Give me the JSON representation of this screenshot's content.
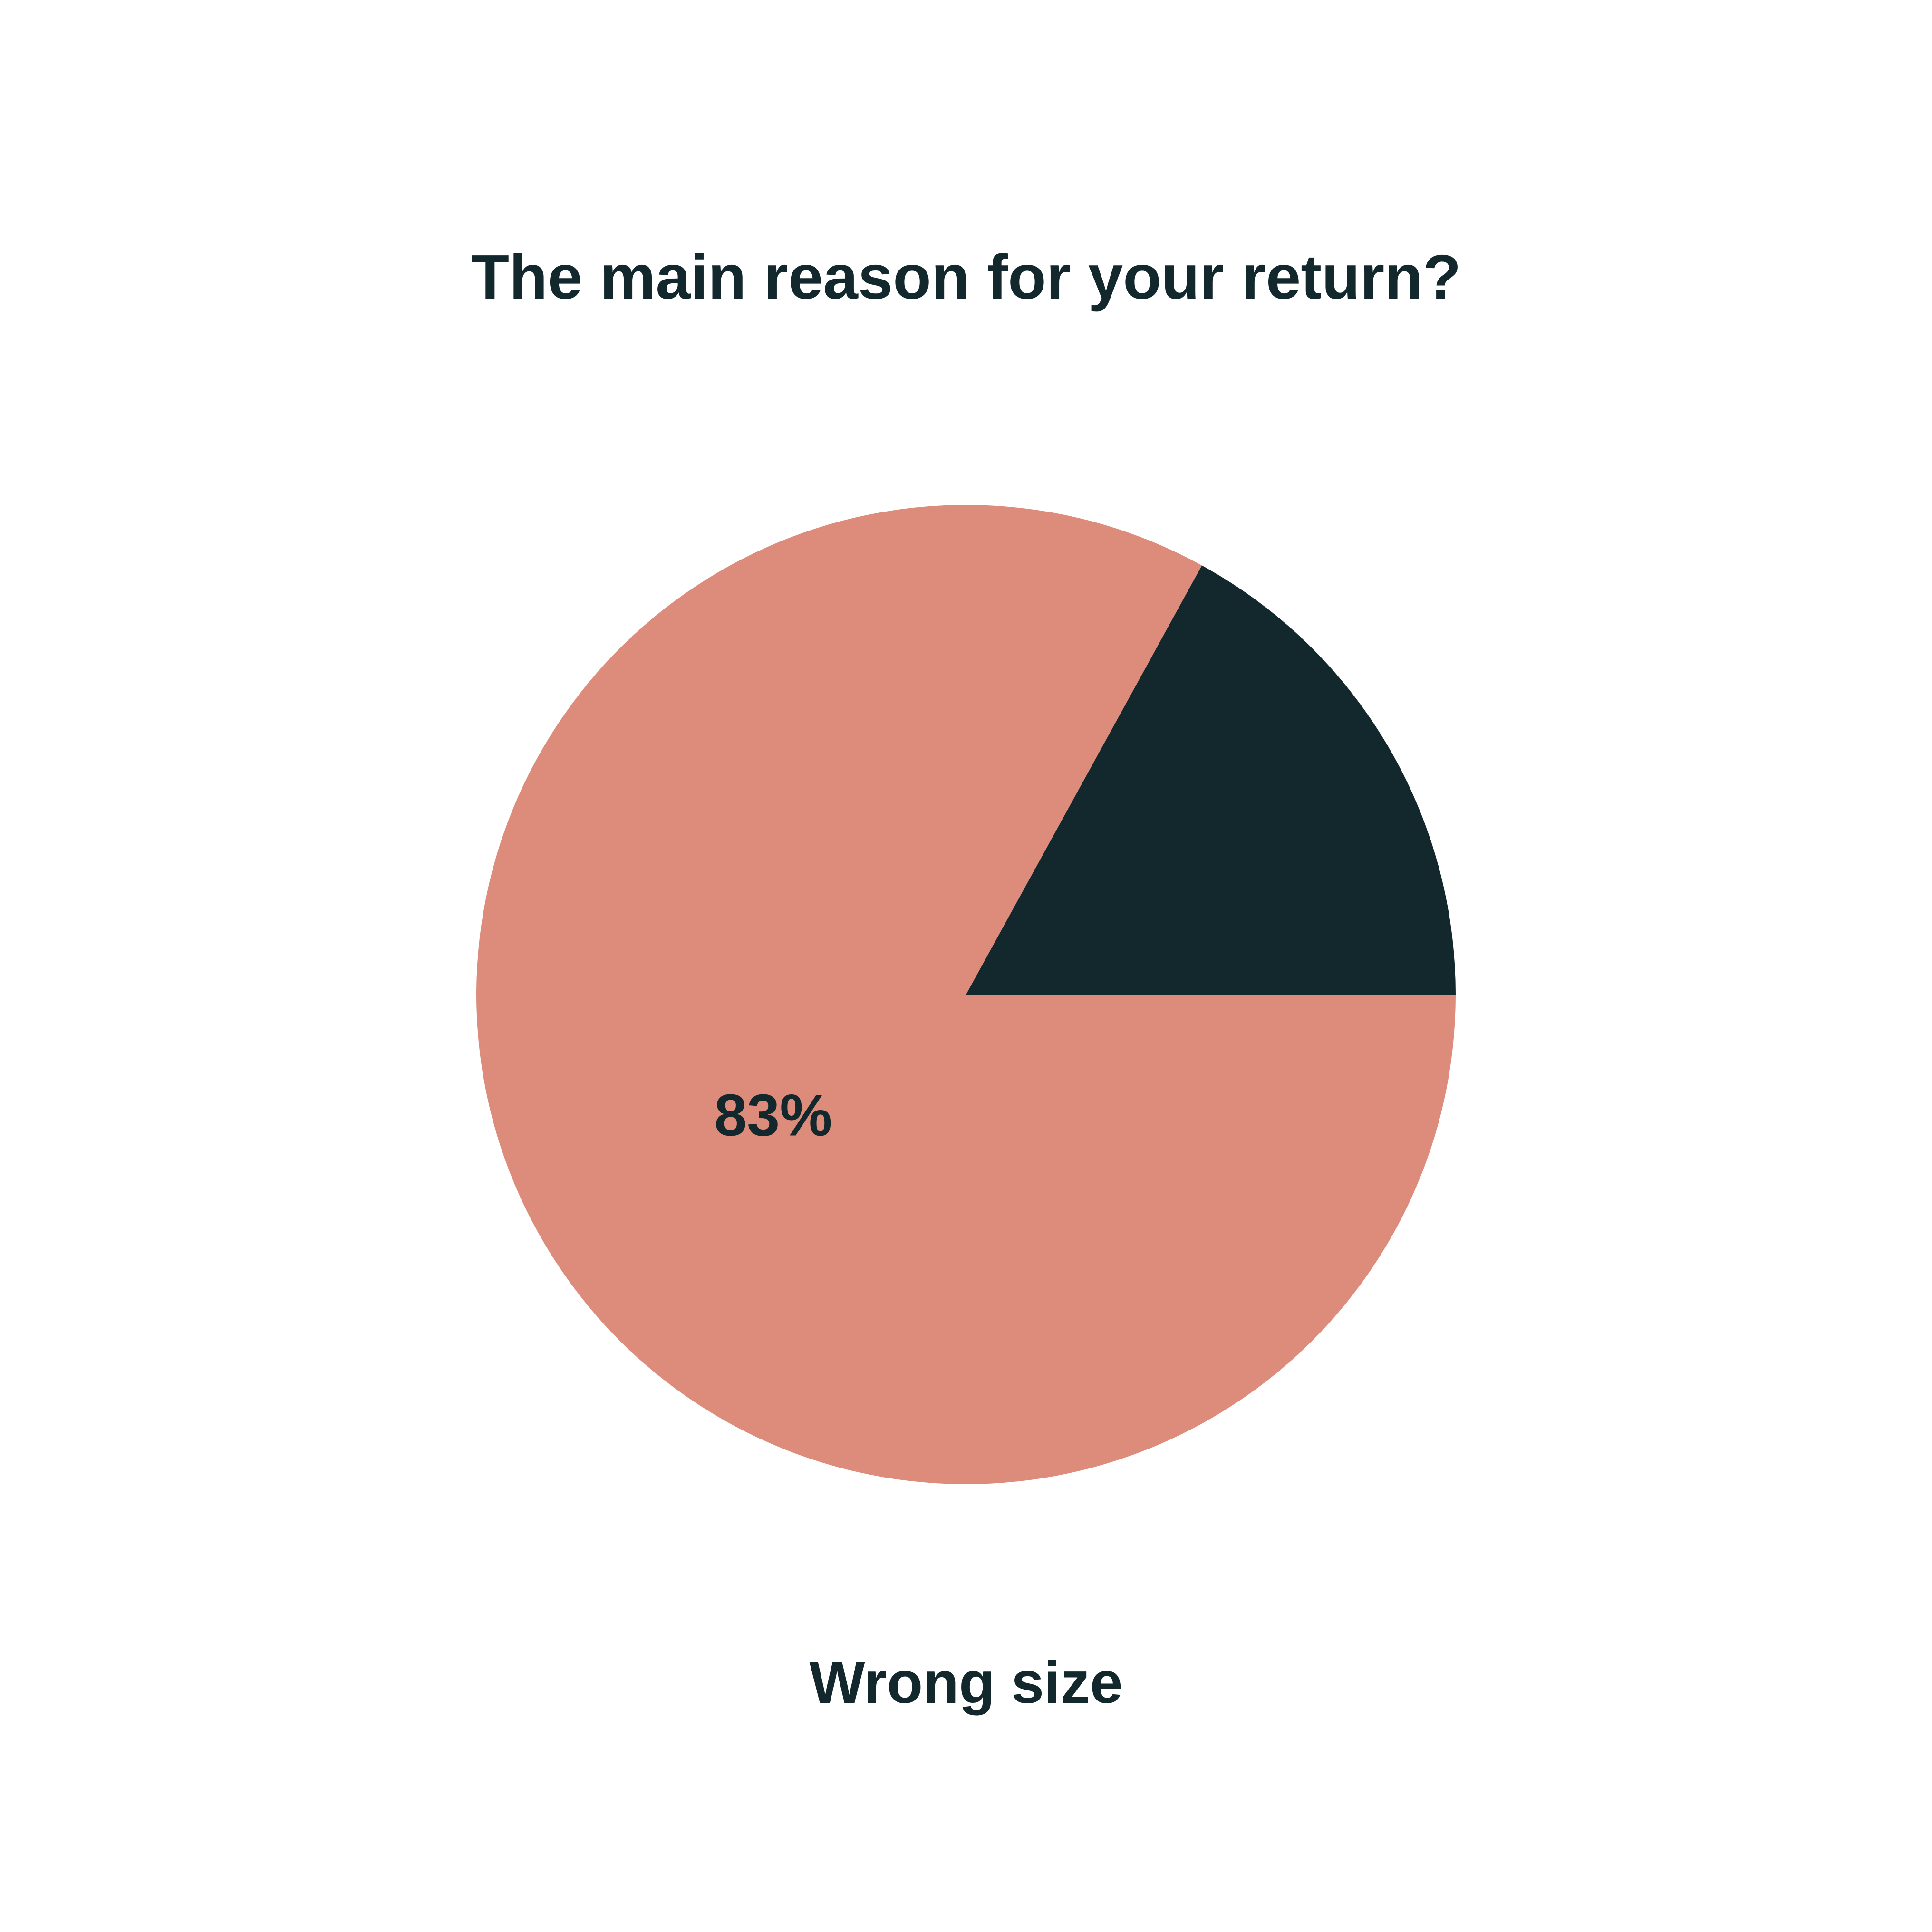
{
  "chart_data": {
    "type": "pie",
    "title": "The main reason for your return?",
    "slices": [
      {
        "label": "Wrong size",
        "value": 83,
        "value_label": "83%",
        "color": "#DD8C7B"
      },
      {
        "label": "",
        "value": 17,
        "value_label": "",
        "color": "#12282D"
      }
    ],
    "caption": "Wrong size",
    "start_angle_deg": 0,
    "direction": "counterclockwise-from-3-oclock-for-dark-slice",
    "legend": "none",
    "text_color": "#12282D",
    "background": "#FFFFFF"
  }
}
